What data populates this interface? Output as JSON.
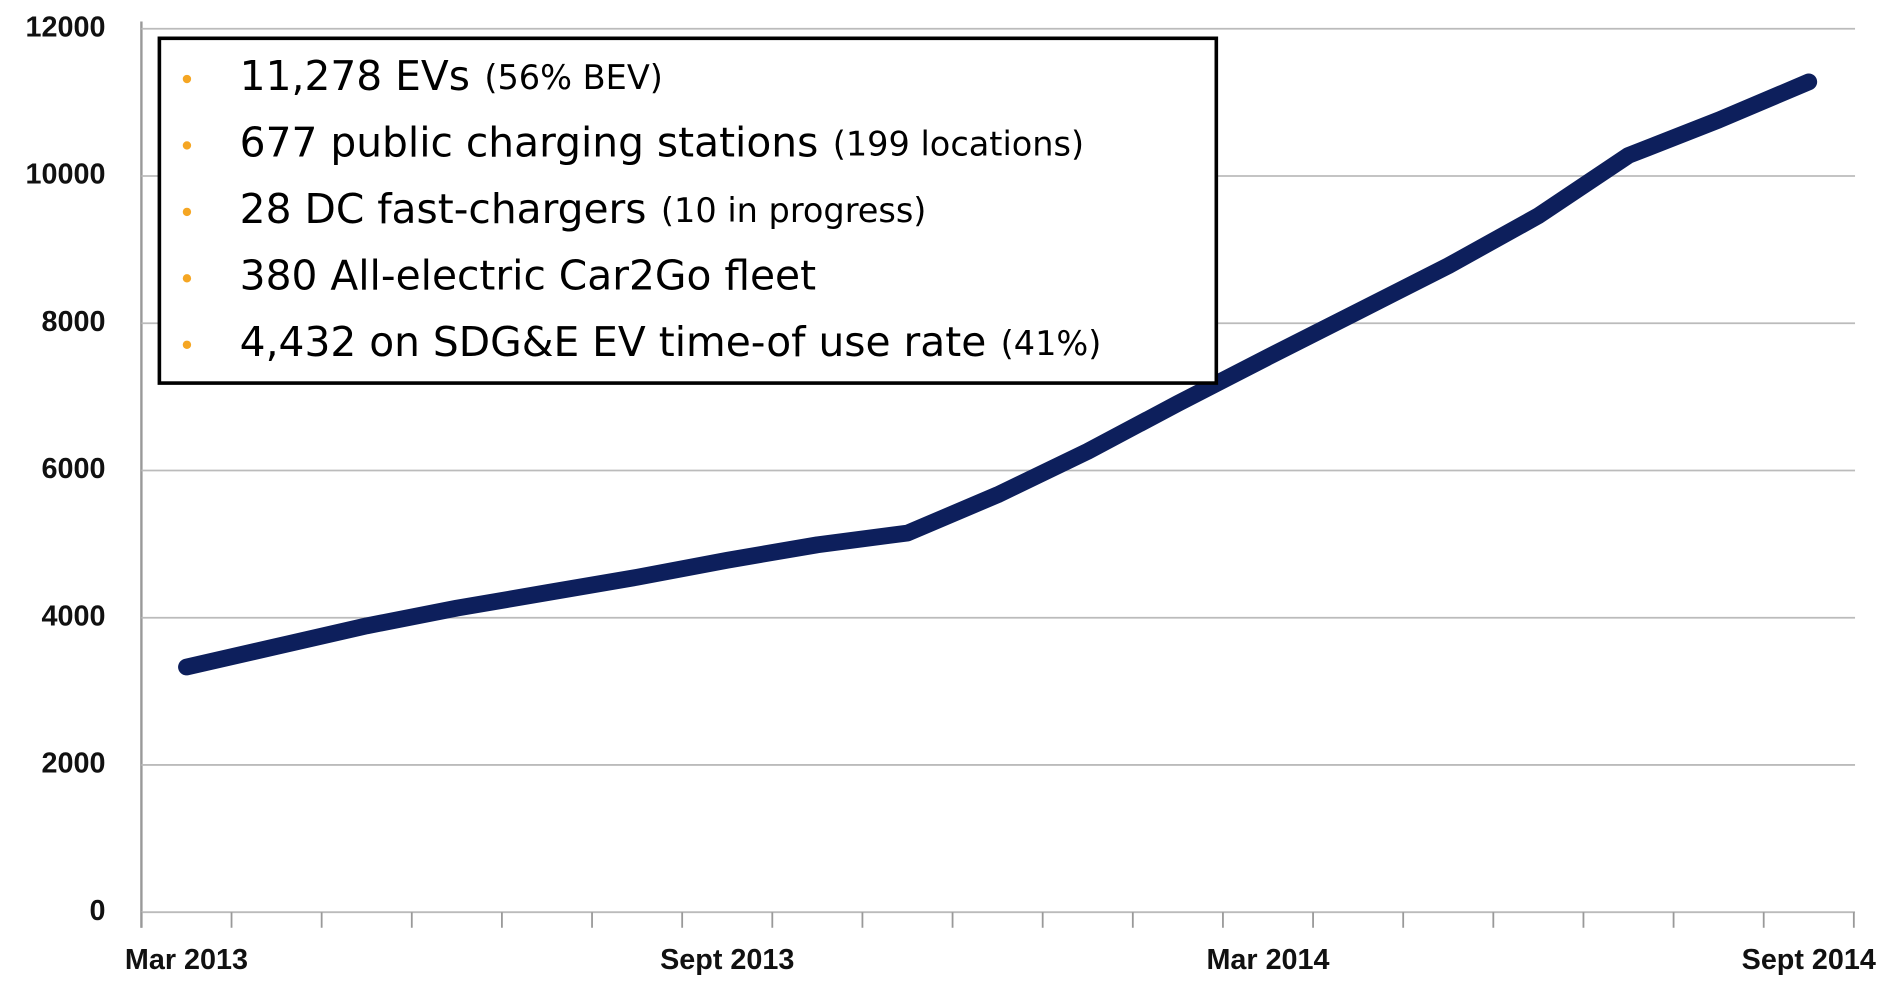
{
  "chart_data": {
    "type": "line",
    "categories": [
      "Mar 2013",
      null,
      null,
      null,
      null,
      null,
      "Sept 2013",
      null,
      null,
      null,
      null,
      null,
      "Mar 2014",
      null,
      null,
      null,
      null,
      null,
      "Sept 2014"
    ],
    "series": [
      {
        "name": "EVs",
        "color": "#0d1f5c",
        "values": [
          3330,
          3610,
          3890,
          4130,
          4340,
          4550,
          4780,
          4990,
          5150,
          5670,
          6260,
          6910,
          7540,
          8160,
          8780,
          9460,
          10280,
          10760,
          11278
        ]
      }
    ],
    "ylim": [
      0,
      12000
    ],
    "yticks": [
      0,
      2000,
      4000,
      6000,
      8000,
      10000,
      12000
    ],
    "grid": true,
    "annotations": [
      {
        "main": "11,278 EVs",
        "note": "(56% BEV)"
      },
      {
        "main": "677 public charging stations",
        "note": "(199 locations)"
      },
      {
        "main": "28 DC fast-chargers",
        "note": "(10 in progress)"
      },
      {
        "main": "380 All-electric Car2Go fleet",
        "note": null
      },
      {
        "main": "4,432 on SDG&E EV time-of use rate",
        "note": "(41%)"
      }
    ]
  }
}
